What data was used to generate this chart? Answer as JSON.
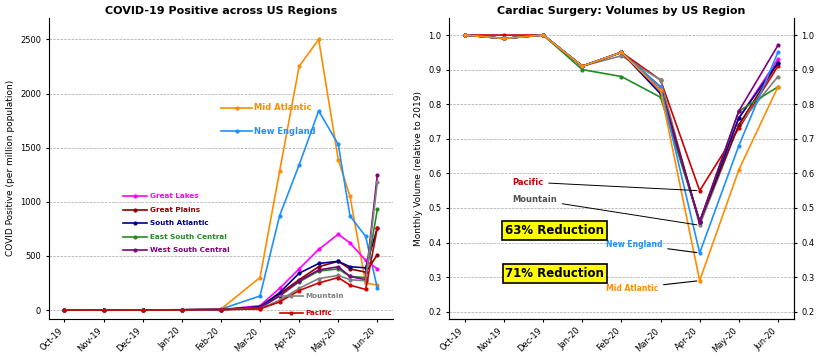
{
  "covid_title": "COVID-19 Positive across US Regions",
  "cardiac_title": "Cardiac Surgery: Volumes by US Region",
  "x_labels": [
    "Oct-19",
    "Nov-19",
    "Dec-19",
    "Jan-20",
    "Feb-20",
    "Mar-20",
    "Apr-20",
    "May-20",
    "Jun-20"
  ],
  "covid_ylabel": "COVID Positive (per million population)",
  "cardiac_ylabel": "Monthly Volume (relative to 2019)",
  "covid_ylim": [
    -80,
    2700
  ],
  "cardiac_ylim": [
    0.18,
    1.05
  ],
  "covid_yticks": [
    0,
    500,
    1000,
    1500,
    2000,
    2500
  ],
  "cardiac_yticks": [
    0.2,
    0.3,
    0.4,
    0.5,
    0.6,
    0.7,
    0.8,
    0.9,
    1.0
  ],
  "background_color": "#ffffff",
  "reduction_63_text": "63% Reduction",
  "reduction_71_text": "71% Reduction"
}
